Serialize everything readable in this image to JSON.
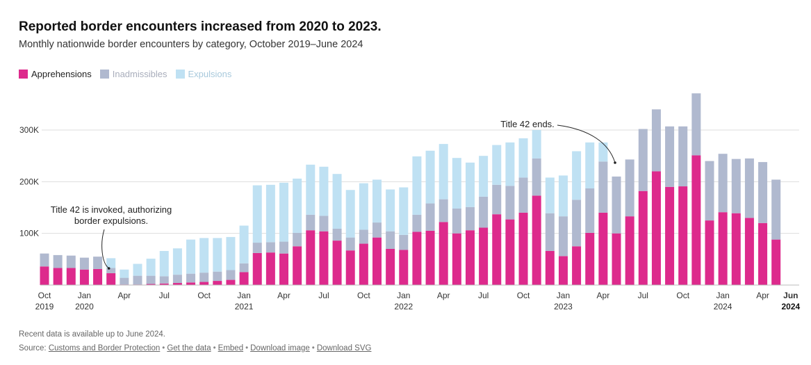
{
  "header": {
    "title": "Reported border encounters increased from 2020 to 2023.",
    "subtitle": "Monthly nationwide border encounters by category, October 2019–June 2024"
  },
  "legend": {
    "apprehensions": "Apprehensions",
    "inadmissibles": "Inadmissibles",
    "expulsions": "Expulsions"
  },
  "colors": {
    "apprehensions": "#dd2a8c",
    "inadmissibles": "#b0b9cf",
    "expulsions": "#bfe1f3",
    "grid": "#dddddd",
    "annotation": "#222222"
  },
  "chart_data": {
    "type": "bar",
    "stacked": true,
    "title": "Reported border encounters increased from 2020 to 2023.",
    "subtitle": "Monthly nationwide border encounters by category, October 2019–June 2024",
    "ylim": [
      0,
      370000
    ],
    "yticks": [
      {
        "value": 100000,
        "label": "100K"
      },
      {
        "value": 200000,
        "label": "200K"
      },
      {
        "value": 300000,
        "label": "300K"
      }
    ],
    "xticks": [
      {
        "index": 0,
        "label": "Oct",
        "label2": "2019",
        "bold": false
      },
      {
        "index": 3,
        "label": "Jan",
        "label2": "2020",
        "bold": false
      },
      {
        "index": 6,
        "label": "Apr",
        "label2": "",
        "bold": false
      },
      {
        "index": 9,
        "label": "Jul",
        "label2": "",
        "bold": false
      },
      {
        "index": 12,
        "label": "Oct",
        "label2": "",
        "bold": false
      },
      {
        "index": 15,
        "label": "Jan",
        "label2": "2021",
        "bold": false
      },
      {
        "index": 18,
        "label": "Apr",
        "label2": "",
        "bold": false
      },
      {
        "index": 21,
        "label": "Jul",
        "label2": "",
        "bold": false
      },
      {
        "index": 24,
        "label": "Oct",
        "label2": "",
        "bold": false
      },
      {
        "index": 27,
        "label": "Jan",
        "label2": "2022",
        "bold": false
      },
      {
        "index": 30,
        "label": "Apr",
        "label2": "",
        "bold": false
      },
      {
        "index": 33,
        "label": "Jul",
        "label2": "",
        "bold": false
      },
      {
        "index": 36,
        "label": "Oct",
        "label2": "",
        "bold": false
      },
      {
        "index": 39,
        "label": "Jan",
        "label2": "2023",
        "bold": false
      },
      {
        "index": 42,
        "label": "Apr",
        "label2": "",
        "bold": false
      },
      {
        "index": 45,
        "label": "Jul",
        "label2": "",
        "bold": false
      },
      {
        "index": 48,
        "label": "Oct",
        "label2": "",
        "bold": false
      },
      {
        "index": 51,
        "label": "Jan",
        "label2": "2024",
        "bold": false
      },
      {
        "index": 54,
        "label": "Apr",
        "label2": "",
        "bold": false
      },
      {
        "index": 56,
        "label": "Jun",
        "label2": "2024",
        "bold": true
      }
    ],
    "months": [
      "2019-10",
      "2019-11",
      "2019-12",
      "2020-01",
      "2020-02",
      "2020-03",
      "2020-04",
      "2020-05",
      "2020-06",
      "2020-07",
      "2020-08",
      "2020-09",
      "2020-10",
      "2020-11",
      "2020-12",
      "2021-01",
      "2021-02",
      "2021-03",
      "2021-04",
      "2021-05",
      "2021-06",
      "2021-07",
      "2021-08",
      "2021-09",
      "2021-10",
      "2021-11",
      "2021-12",
      "2022-01",
      "2022-02",
      "2022-03",
      "2022-04",
      "2022-05",
      "2022-06",
      "2022-07",
      "2022-08",
      "2022-09",
      "2022-10",
      "2022-11",
      "2022-12",
      "2023-01",
      "2023-02",
      "2023-03",
      "2023-04",
      "2023-05",
      "2023-06",
      "2023-07",
      "2023-08",
      "2023-09",
      "2023-10",
      "2023-11",
      "2023-12",
      "2024-01",
      "2024-02",
      "2024-03",
      "2024-04",
      "2024-05",
      "2024-06"
    ],
    "series": [
      {
        "name": "Apprehensions",
        "key": "apprehensions",
        "values": [
          36000,
          33000,
          33000,
          30000,
          31000,
          23000,
          1000,
          1000,
          2000,
          3000,
          4000,
          5000,
          6000,
          8000,
          10000,
          25000,
          62000,
          63000,
          61000,
          75000,
          106000,
          104000,
          86000,
          67000,
          80000,
          92000,
          70000,
          68000,
          103000,
          105000,
          122000,
          100000,
          106000,
          111000,
          137000,
          127000,
          140000,
          173000,
          66000,
          56000,
          75000,
          101000,
          140000,
          100000,
          133000,
          182000,
          220000,
          190000,
          191000,
          251000,
          125000,
          141000,
          139000,
          130000,
          120000,
          88000,
          0
        ]
      },
      {
        "name": "Inadmissibles",
        "key": "inadmissibles",
        "values": [
          25000,
          25000,
          24000,
          23000,
          24000,
          10000,
          13000,
          17000,
          16000,
          14000,
          16000,
          17000,
          18000,
          18000,
          19000,
          17000,
          20000,
          20000,
          23000,
          26000,
          30000,
          30000,
          23000,
          25000,
          27000,
          29000,
          34000,
          29000,
          33000,
          53000,
          44000,
          48000,
          45000,
          60000,
          57000,
          65000,
          68000,
          72000,
          73000,
          77000,
          90000,
          86000,
          99000,
          110000,
          110000,
          120000,
          120000,
          117000,
          116000,
          120000,
          115000,
          113000,
          105000,
          115000,
          118000,
          116000,
          0
        ]
      },
      {
        "name": "Expulsions",
        "key": "expulsions",
        "values": [
          0,
          0,
          0,
          0,
          0,
          19000,
          16000,
          23000,
          33000,
          49000,
          51000,
          66000,
          67000,
          65000,
          64000,
          73000,
          111000,
          111000,
          114000,
          105000,
          97000,
          95000,
          106000,
          92000,
          90000,
          83000,
          81000,
          92000,
          113000,
          102000,
          107000,
          98000,
          86000,
          79000,
          77000,
          84000,
          76000,
          55000,
          69000,
          79000,
          94000,
          89000,
          37000,
          0,
          0,
          0,
          0,
          0,
          0,
          0,
          0,
          0,
          0,
          0,
          0,
          0,
          0
        ]
      }
    ],
    "annotations": [
      {
        "text_lines": [
          "Title 42 is invoked, authorizing",
          "border expulsions."
        ],
        "month_index": 5
      },
      {
        "text_lines": [
          "Title 42 ends."
        ],
        "month_index": 43
      }
    ]
  },
  "footer": {
    "note": "Recent data is available up to June 2024.",
    "source_prefix": "Source:",
    "source_link": "Customs and Border Protection",
    "get_data": "Get the data",
    "embed": "Embed",
    "download_image": "Download image",
    "download_svg": "Download SVG",
    "separator": "•"
  }
}
